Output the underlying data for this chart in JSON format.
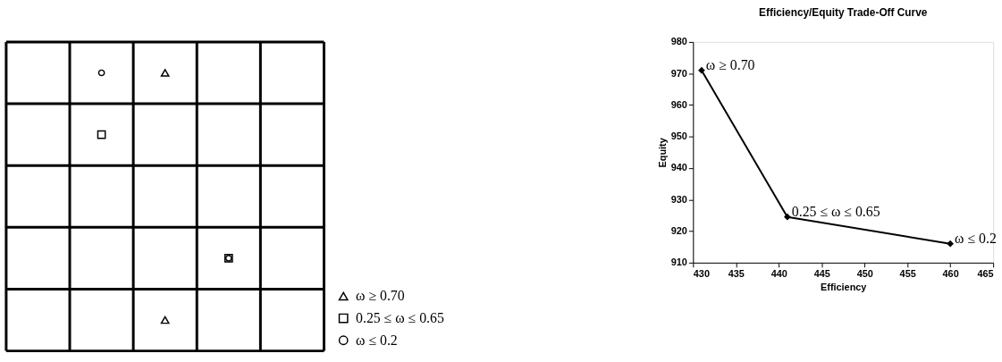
{
  "chart_data": [
    {
      "type": "other",
      "annotations": [
        "ω ≥ 0.70",
        "0.25 ≤ ω ≤ 0.65",
        "ω ≤ 0.2"
      ]
    },
    {
      "type": "line",
      "title": "Efficiency/Equity Trade-Off Curve",
      "xlabel": "Efficiency",
      "ylabel": "Equity",
      "xlim": [
        430,
        465
      ],
      "xticks": [
        430,
        435,
        440,
        445,
        450,
        455,
        460,
        465
      ],
      "ylim": [
        910,
        980
      ],
      "yticks": [
        910,
        920,
        930,
        940,
        950,
        960,
        970,
        980
      ],
      "marker": "diamond",
      "line_style": "solid",
      "series": [
        {
          "color": "#000000",
          "x": [
            431,
            441,
            460
          ],
          "values": [
            971,
            924.5,
            916
          ]
        }
      ],
      "annotations": [
        {
          "text": "ω ≥ 0.70",
          "x": 431,
          "y": 971
        },
        {
          "text": "0.25 ≤ ω ≤ 0.65",
          "x": 441,
          "y": 924.5
        },
        {
          "text": "ω ≤ 0.2",
          "x": 460,
          "y": 916
        }
      ]
    }
  ]
}
